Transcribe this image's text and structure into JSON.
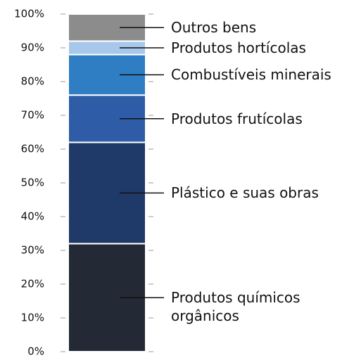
{
  "chart_data": {
    "type": "stacked_bar",
    "series": [
      {
        "name": "Produtos químicos orgânicos",
        "color": "#232a35",
        "values": [
          32
        ]
      },
      {
        "name": "Plástico e suas obras",
        "color": "#1f3a68",
        "values": [
          30
        ]
      },
      {
        "name": "Produtos frutícolas",
        "color": "#2f5ca6",
        "values": [
          14
        ]
      },
      {
        "name": "Combustíveis minerais",
        "color": "#2f7ec4",
        "values": [
          12
        ]
      },
      {
        "name": "Produtos hortícolas",
        "color": "#a7c8ea",
        "values": [
          4
        ]
      },
      {
        "name": "Outros bens",
        "color": "#8c8c8c",
        "values": [
          8
        ]
      }
    ],
    "ylim": [
      0,
      100
    ],
    "yticks": [
      {
        "value": 0,
        "label": "0%"
      },
      {
        "value": 10,
        "label": "10%"
      },
      {
        "value": 20,
        "label": "20%"
      },
      {
        "value": 30,
        "label": "30%"
      },
      {
        "value": 40,
        "label": "40%"
      },
      {
        "value": 50,
        "label": "50%"
      },
      {
        "value": 60,
        "label": "60%"
      },
      {
        "value": 70,
        "label": "70%"
      },
      {
        "value": 80,
        "label": "80%"
      },
      {
        "value": 90,
        "label": "90%"
      },
      {
        "value": 100,
        "label": "100%"
      }
    ]
  }
}
